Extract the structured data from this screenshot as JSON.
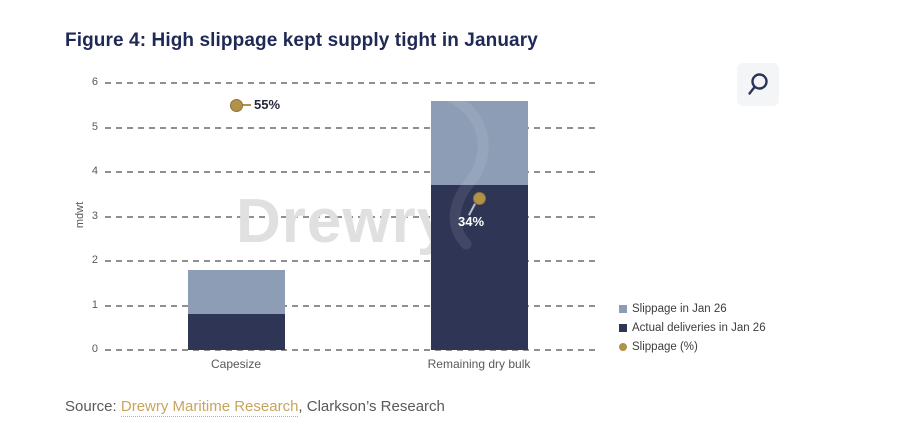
{
  "header": {
    "title": "Figure 4: High slippage kept supply tight in January"
  },
  "toolbar": {
    "zoom_button": {
      "icon": "magnifying-glass"
    }
  },
  "watermark": {
    "text": "Drewry"
  },
  "chart_data": {
    "type": "bar",
    "stacked": true,
    "title": "Figure 4: High slippage kept supply tight in January",
    "categories": [
      "Capesize",
      "Remaining dry bulk"
    ],
    "series": [
      {
        "name": "Actual deliveries in Jan 26",
        "role": "bar-bottom",
        "color": "#2f3555",
        "values": [
          0.8,
          3.7
        ]
      },
      {
        "name": "Slippage in Jan 26",
        "role": "bar-top",
        "color": "#8c9db5",
        "values": [
          1.0,
          1.9
        ]
      },
      {
        "name": "Slippage (%)",
        "role": "point",
        "color": "#b2914a",
        "values_percent": [
          55,
          34
        ],
        "point_labels": [
          "55%",
          "34%"
        ],
        "plotted_at_mdwt": [
          5.5,
          3.4
        ]
      }
    ],
    "ylabel": "mdwt",
    "ylim": [
      0,
      6
    ],
    "y_ticks": [
      6,
      5,
      4,
      3,
      2,
      1,
      0
    ],
    "grid": "horizontal-dashed",
    "legend_position": "right",
    "legend": [
      {
        "label": "Slippage in Jan 26",
        "marker": "square",
        "color": "#8c9db5"
      },
      {
        "label": "Actual deliveries in Jan 26",
        "marker": "square",
        "color": "#2f3555"
      },
      {
        "label": "Slippage (%)",
        "marker": "circle",
        "color": "#b2914a"
      }
    ]
  },
  "source": {
    "prefix": "Source: ",
    "link_text": "Drewry Maritime Research",
    "suffix": ", Clarkson’s Research"
  },
  "colors": {
    "title": "#1f2956",
    "axis_text": "#595959",
    "gridline": "#8f8f8f",
    "watermark": "#e0e0e0",
    "gold": "#b2914a",
    "source_link": "#c8a45c"
  }
}
